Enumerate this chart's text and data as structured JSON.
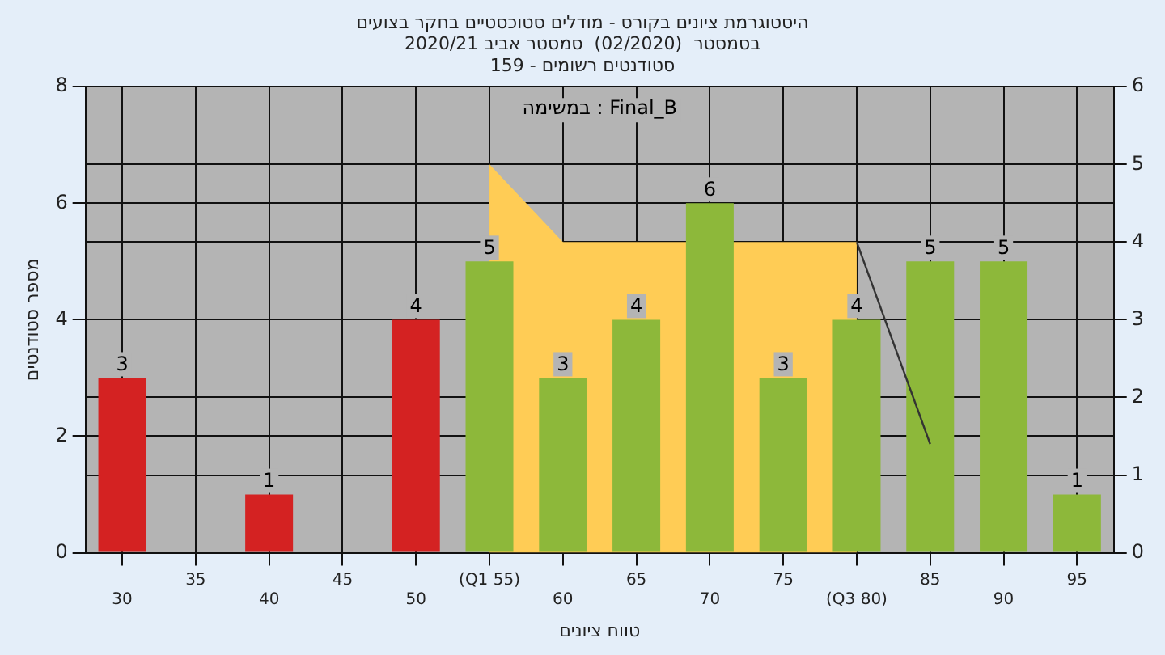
{
  "chart_data": {
    "type": "bar",
    "title": [
      "היסטוגרמת ציונים בקורס - מודלים סטוכסטיים בחקר בצועים",
      "בסמסטר  (02/2020)  סמסטר אביב 2020/21",
      "סטודנטים רשומים - 159"
    ],
    "xlabel": "טווח ציונים",
    "ylabel": "מספר סטודנטים",
    "categories": [
      "30",
      "35",
      "40",
      "45",
      "50",
      "(Q1 55)",
      "60",
      "65",
      "70",
      "75",
      "(Q3 80)",
      "85",
      "90",
      "95"
    ],
    "series": [
      {
        "values": [
          3,
          0,
          1,
          0,
          4,
          5,
          3,
          4,
          6,
          3,
          4,
          5,
          5,
          1
        ],
        "colors": [
          "#d42222",
          "#d42222",
          "#d42222",
          "#d42222",
          "#d42222",
          "#8db83a",
          "#8db83a",
          "#8db83a",
          "#8db83a",
          "#8db83a",
          "#8db83a",
          "#8db83a",
          "#8db83a",
          "#8db83a"
        ],
        "value_labels": [
          "3",
          null,
          "1",
          null,
          "4",
          "5",
          "3",
          "4",
          "6",
          "3",
          "4",
          "5",
          "5",
          "1"
        ]
      },
      {
        "type": "area",
        "axis": "y2",
        "color": "#ffcc55",
        "values": [
          null,
          null,
          null,
          null,
          null,
          5,
          4,
          4,
          null,
          4,
          4,
          null,
          null,
          null
        ]
      },
      {
        "type": "line",
        "axis": "y2",
        "color": "#333333",
        "values": [
          null,
          null,
          null,
          null,
          null,
          null,
          null,
          null,
          null,
          null,
          4,
          1.4,
          null,
          null
        ]
      }
    ],
    "ylim": [
      0,
      8
    ],
    "yticks": [
      0,
      2,
      4,
      6,
      8
    ],
    "y2lim": [
      0,
      6
    ],
    "y2ticks": [
      0,
      1,
      2,
      3,
      4,
      5,
      6
    ],
    "annotations": [
      "במשימה : Final_B"
    ],
    "grid": true,
    "legend": false
  }
}
